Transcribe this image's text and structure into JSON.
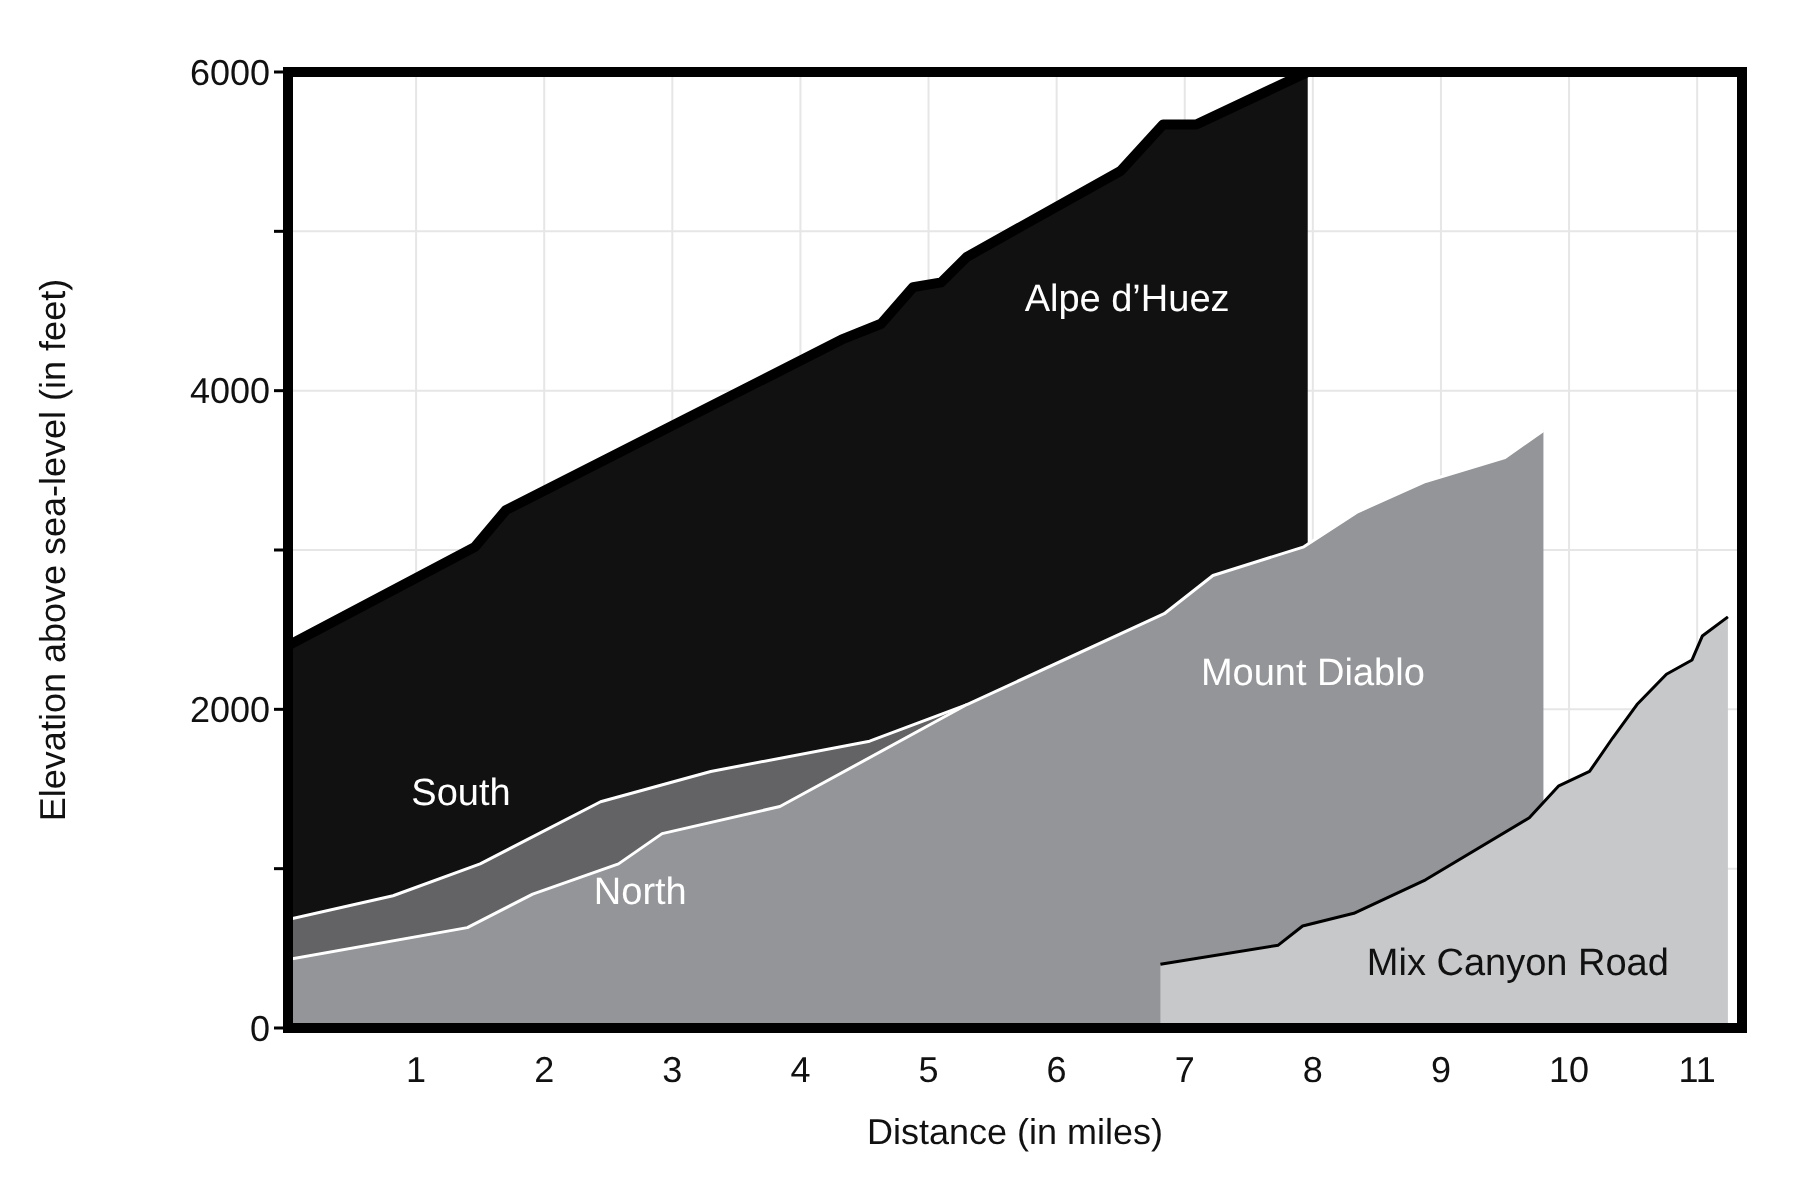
{
  "chart_data": {
    "type": "area",
    "xlabel": "Distance (in miles)",
    "ylabel": "Elevation above sea-level (in feet)",
    "xlim": [
      0,
      11.35
    ],
    "xticks": [
      1,
      2,
      3,
      4,
      5,
      6,
      7,
      8,
      9,
      10,
      11
    ],
    "ylim": [
      0,
      6000
    ],
    "yticks": [
      0,
      {
        "value": 1000,
        "label": null
      },
      2000,
      {
        "value": 3000,
        "label": null
      },
      4000,
      {
        "value": 5000,
        "label": null
      },
      6000
    ],
    "grid": true,
    "series": [
      {
        "name": "Alpe d’Huez",
        "color": "#111111",
        "x": [
          0,
          1.46,
          1.7,
          4.32,
          4.63,
          4.88,
          5.1,
          5.3,
          6.5,
          6.83,
          7.09,
          7.96
        ],
        "values": [
          2400,
          3020,
          3250,
          4320,
          4420,
          4650,
          4680,
          4840,
          5380,
          5670,
          5670,
          6000
        ]
      },
      {
        "name": "South",
        "color": "#636365",
        "x": [
          0,
          0.82,
          1.5,
          2.44,
          3.3,
          4.54,
          5.3
        ],
        "values": [
          680,
          830,
          1030,
          1420,
          1610,
          1800,
          2030
        ]
      },
      {
        "name": "North",
        "color": "#939598",
        "x": [
          0,
          1.4,
          1.91,
          2.58,
          2.92,
          3.84,
          5.3,
          6.84,
          7.22,
          7.93,
          8.35,
          8.88,
          9.5,
          9.8
        ],
        "values": [
          430,
          630,
          840,
          1030,
          1220,
          1390,
          2030,
          2600,
          2840,
          3020,
          3240,
          3430,
          3580,
          3750
        ]
      },
      {
        "name": "Mix Canyon Road",
        "color": "#c7c8ca",
        "x": [
          6.81,
          7.73,
          7.92,
          8.32,
          8.88,
          9.69,
          9.92,
          10.16,
          10.34,
          10.53,
          10.76,
          10.96,
          11.04,
          11.24
        ],
        "values": [
          400,
          520,
          640,
          720,
          930,
          1320,
          1520,
          1610,
          1820,
          2030,
          2220,
          2310,
          2460,
          2580
        ]
      }
    ],
    "annotations": [
      {
        "text": "Mount Diablo",
        "x": 8.0,
        "y": 2150
      }
    ]
  }
}
